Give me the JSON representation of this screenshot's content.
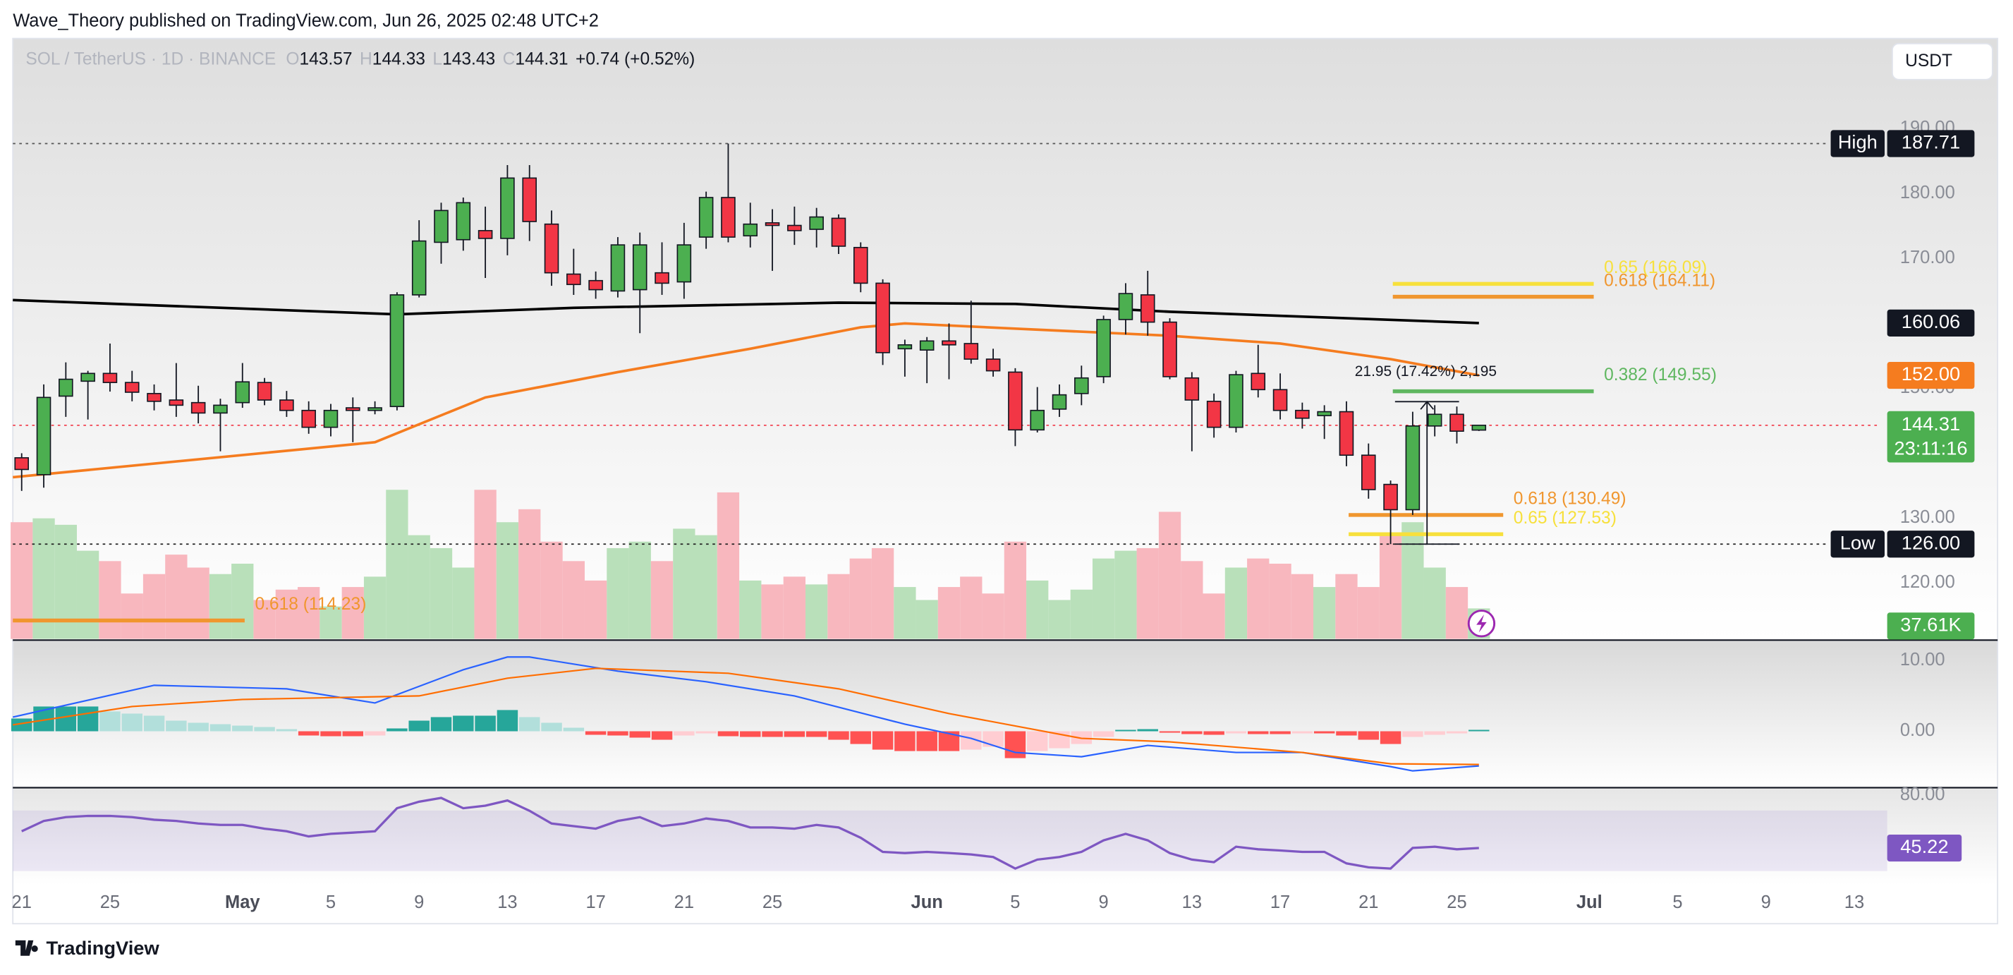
{
  "header": {
    "publisher": "Wave_Theory published on TradingView.com, Jun 26, 2025 02:48 UTC+2",
    "symbol": "SOL / TetherUS · 1D · BINANCE",
    "o": "O",
    "h": "H",
    "l": "L",
    "c": "C",
    "change": "+0.74 (+0.52%)",
    "currency": "USDT",
    "brand": "TradingView"
  },
  "chart_data": [
    {
      "type": "candlestick",
      "up_color": "#4caf50",
      "down_color": "#f23645",
      "xlim": [
        -0.4,
        84.2
      ],
      "xticks": [
        {
          "value": 0,
          "label": "21"
        },
        {
          "value": 4,
          "label": "25"
        },
        {
          "value": 10,
          "label": "May"
        },
        {
          "value": 14,
          "label": "5"
        },
        {
          "value": 18,
          "label": "9"
        },
        {
          "value": 22,
          "label": "13"
        },
        {
          "value": 26,
          "label": "17"
        },
        {
          "value": 30,
          "label": "21"
        },
        {
          "value": 34,
          "label": "25"
        },
        {
          "value": 41,
          "label": "Jun"
        },
        {
          "value": 45,
          "label": "5"
        },
        {
          "value": 49,
          "label": "9"
        },
        {
          "value": 53,
          "label": "13"
        },
        {
          "value": 57,
          "label": "17"
        },
        {
          "value": 61,
          "label": "21"
        },
        {
          "value": 65,
          "label": "25"
        },
        {
          "value": 71,
          "label": "Jul"
        },
        {
          "value": 75,
          "label": "5"
        },
        {
          "value": 79,
          "label": "9"
        },
        {
          "value": 83,
          "label": "13"
        }
      ],
      "ylim": [
        111.4,
        203.9
      ],
      "yticks": [
        {
          "value": 190,
          "label": "190.00"
        },
        {
          "value": 180,
          "label": "180.00"
        },
        {
          "value": 170,
          "label": "170.00"
        },
        {
          "value": 160,
          "label": "160.00"
        },
        {
          "value": 150,
          "label": "150.00"
        },
        {
          "value": 140,
          "label": "140.00"
        },
        {
          "value": 130,
          "label": "130.00"
        },
        {
          "value": 120,
          "label": "120.00"
        }
      ],
      "open": [
        139.3,
        136.7,
        148.8,
        151.1,
        152.3,
        150.9,
        149.2,
        148.2,
        147.8,
        146.2,
        147.8,
        150.9,
        148.2,
        146.6,
        144.0,
        147.0,
        146.6,
        147.2,
        164.4,
        172.5,
        172.9,
        174.3,
        173.1,
        182.4,
        175.3,
        167.6,
        166.6,
        165.0,
        165.2,
        167.8,
        166.4,
        173.3,
        179.4,
        173.5,
        175.5,
        175.1,
        174.5,
        176.2,
        171.7,
        166.2,
        156.1,
        155.9,
        157.3,
        156.9,
        154.5,
        152.5,
        143.6,
        146.8,
        149.2,
        151.8,
        160.6,
        164.4,
        160.2,
        151.6,
        148.0,
        144.0,
        152.3,
        149.8,
        146.6,
        145.8,
        146.4,
        139.7,
        135.2,
        131.3,
        144.2,
        146.0,
        143.57
      ],
      "high": [
        140.0,
        150.6,
        154.0,
        152.7,
        156.9,
        152.7,
        150.6,
        153.9,
        150.4,
        148.4,
        153.9,
        151.6,
        149.6,
        148.0,
        147.6,
        148.6,
        148.0,
        164.8,
        175.9,
        178.6,
        179.4,
        178.0,
        184.4,
        184.4,
        177.4,
        171.5,
        168.0,
        173.3,
        174.0,
        172.5,
        175.5,
        180.3,
        187.71,
        178.6,
        177.6,
        178.0,
        177.8,
        176.8,
        172.5,
        166.8,
        157.5,
        157.9,
        160.0,
        163.5,
        156.1,
        153.1,
        150.2,
        150.6,
        153.5,
        161.2,
        166.2,
        168.1,
        160.8,
        152.5,
        149.2,
        152.7,
        156.7,
        152.3,
        147.8,
        147.4,
        148.0,
        141.5,
        135.8,
        146.4,
        147.4,
        147.2,
        144.33
      ],
      "low": [
        134.2,
        134.7,
        145.6,
        145.2,
        149.5,
        148.0,
        146.6,
        145.6,
        144.6,
        140.3,
        147.0,
        147.4,
        145.6,
        143.0,
        142.6,
        141.7,
        146.0,
        146.6,
        164.0,
        169.2,
        171.2,
        167.0,
        170.5,
        172.7,
        165.8,
        164.4,
        163.8,
        164.0,
        158.5,
        164.4,
        163.8,
        171.5,
        172.5,
        171.7,
        168.1,
        172.1,
        171.7,
        170.7,
        164.8,
        153.6,
        151.8,
        150.8,
        151.4,
        153.8,
        151.8,
        141.1,
        143.2,
        145.6,
        147.4,
        150.8,
        158.3,
        158.1,
        151.4,
        140.3,
        142.4,
        143.2,
        148.6,
        145.2,
        143.8,
        142.2,
        138.0,
        133.0,
        126.0,
        130.5,
        142.6,
        141.5,
        143.43
      ],
      "close": [
        137.5,
        148.6,
        151.4,
        152.3,
        150.9,
        149.4,
        148.0,
        147.4,
        146.2,
        147.4,
        151.0,
        148.2,
        146.6,
        144.0,
        146.6,
        146.6,
        147.0,
        164.4,
        172.7,
        177.4,
        178.6,
        173.1,
        182.4,
        175.7,
        167.8,
        166.0,
        165.2,
        172.1,
        172.1,
        166.2,
        172.1,
        179.4,
        173.3,
        175.3,
        175.1,
        174.3,
        176.4,
        171.9,
        166.2,
        155.5,
        156.7,
        157.3,
        156.7,
        154.5,
        152.7,
        143.6,
        146.6,
        149.0,
        151.6,
        160.6,
        164.6,
        160.2,
        151.8,
        148.2,
        144.0,
        152.1,
        149.8,
        146.6,
        145.4,
        146.4,
        139.7,
        134.4,
        131.3,
        144.2,
        146.0,
        143.4,
        144.31
      ],
      "volume": {
        "up_color": "#b9e0ba",
        "down_color": "#f8b7be",
        "ylim": [
          0,
          190000
        ],
        "values": [
          144000,
          148800,
          140800,
          108800,
          96000,
          56000,
          80000,
          104000,
          88000,
          80000,
          92800,
          48000,
          60800,
          64000,
          40000,
          64000,
          76800,
          184000,
          128000,
          112000,
          88000,
          184000,
          144000,
          160000,
          120000,
          96000,
          72000,
          112000,
          120000,
          96000,
          136000,
          128000,
          180800,
          72000,
          67200,
          76800,
          67200,
          80000,
          99200,
          112000,
          64000,
          48000,
          64000,
          76800,
          56000,
          120000,
          72000,
          48000,
          60800,
          99200,
          108800,
          112000,
          156800,
          96000,
          56000,
          88000,
          99200,
          92800,
          80000,
          64000,
          80000,
          64000,
          128000,
          144000,
          88000,
          64000,
          37610
        ],
        "last_label": "37.61K",
        "label_color": "#4caf50"
      },
      "series": [
        {
          "color": "#000000",
          "x": [
            -0.4,
            17,
            25,
            37,
            45,
            52,
            60,
            66
          ],
          "values": [
            163.6,
            161.4,
            162.4,
            163.2,
            163.0,
            161.8,
            160.8,
            160.06
          ]
        },
        {
          "color": "#f57c1f",
          "x": [
            -0.4,
            16,
            21,
            27,
            33,
            38,
            40,
            45,
            52,
            57,
            62,
            66
          ],
          "values": [
            136.3,
            141.7,
            148.6,
            152.5,
            156.1,
            159.4,
            160.0,
            159.2,
            158.1,
            156.9,
            154.5,
            152.0
          ]
        }
      ],
      "fib_levels": [
        {
          "label": "0.65 (166.09)",
          "value": 166.09,
          "color": "#f7e03c",
          "x": [
            62.1,
            71.2
          ]
        },
        {
          "label": "0.618 (164.11)",
          "value": 164.11,
          "color": "#f0962e",
          "x": [
            62.1,
            71.2
          ]
        },
        {
          "label": "0.382 (149.55)",
          "value": 149.55,
          "color": "#5fb760",
          "x": [
            62.1,
            71.2
          ]
        },
        {
          "label": "0.618 (130.49)",
          "value": 130.49,
          "color": "#f0962e",
          "x": [
            60.1,
            67.1
          ]
        },
        {
          "label": "0.65 (127.53)",
          "value": 127.53,
          "color": "#f7e03c",
          "x": [
            60.1,
            67.1
          ]
        },
        {
          "label": "0.618 (114.23)",
          "value": 114.23,
          "color": "#f0962e",
          "x": [
            -0.4,
            10.1
          ]
        }
      ],
      "measure": {
        "label": "21.95 (17.42%) 2,195",
        "from": 126,
        "to": 147.95,
        "x": [
          62.2,
          65.1
        ]
      },
      "price_labels": [
        {
          "tag": "High",
          "value": 187.71,
          "label": "187.71",
          "bg": "#131722",
          "line": "#555555"
        },
        {
          "value": 160.06,
          "label": "160.06",
          "bg": "#131722"
        },
        {
          "value": 152,
          "label": "152.00",
          "bg": "#f57c1f"
        },
        {
          "value": 144.31,
          "label": "144.31",
          "sub": "23:11:16",
          "bg": "#4caf50",
          "line": "#f23645"
        },
        {
          "tag": "Low",
          "value": 126,
          "label": "126.00",
          "bg": "#131722",
          "line": "#222222"
        }
      ]
    },
    {
      "type": "macd",
      "ylim": [
        -7.8,
        12.7
      ],
      "yticks": [
        {
          "value": 10,
          "label": "10.00"
        },
        {
          "value": 0,
          "label": "0.00"
        }
      ],
      "hist_colors": [
        "#26a69a",
        "#b2dfdb",
        "#ff5252",
        "#ffcdd2"
      ],
      "histogram": [
        1.8,
        3.5,
        3.5,
        3.5,
        2.8,
        2.5,
        2.2,
        1.5,
        1.2,
        1.0,
        0.8,
        0.6,
        0.3,
        -0.6,
        -0.7,
        -0.7,
        -0.6,
        0.4,
        1.5,
        2.0,
        2.2,
        2.2,
        3.0,
        2.0,
        1.2,
        0.5,
        -0.5,
        -0.6,
        -0.9,
        -1.2,
        -0.6,
        -0.3,
        -0.7,
        -0.8,
        -0.8,
        -0.8,
        -0.8,
        -1.2,
        -1.8,
        -2.6,
        -2.8,
        -2.8,
        -2.8,
        -2.6,
        -2.2,
        -3.8,
        -2.8,
        -2.4,
        -1.8,
        -0.8,
        0.2,
        0.3,
        -0.2,
        -0.4,
        -0.5,
        -0.3,
        -0.4,
        -0.4,
        -0.3,
        -0.3,
        -0.6,
        -1.2,
        -1.8,
        -0.8,
        -0.5,
        -0.3,
        0.2
      ],
      "series": [
        {
          "color": "#2962ff",
          "x": [
            -0.4,
            6,
            12,
            16,
            20,
            22,
            23,
            27,
            31,
            35,
            40,
            43,
            45,
            48,
            51,
            55,
            58,
            62,
            63,
            66
          ],
          "values": [
            2,
            6.5,
            6,
            4,
            8.7,
            10.5,
            10.5,
            8.5,
            7,
            5,
            1,
            -1,
            -3,
            -3.6,
            -2,
            -3,
            -3,
            -5,
            -5.6,
            -4.9
          ]
        },
        {
          "color": "#ff6d00",
          "x": [
            -0.4,
            5,
            10,
            18,
            22,
            26,
            32,
            37,
            42,
            48,
            52,
            58,
            62,
            66
          ],
          "values": [
            0.9,
            3.5,
            4.5,
            5,
            7.5,
            8.9,
            8.2,
            6,
            2.5,
            -1,
            -1.5,
            -3,
            -4.6,
            -4.7
          ]
        }
      ]
    },
    {
      "type": "line",
      "ylim": [
        20.7,
        84.2
      ],
      "yticks": [
        {
          "value": 80,
          "label": "80.00"
        }
      ],
      "band": [
        30,
        70
      ],
      "color": "#7e57c2",
      "values": [
        56.3,
        63.1,
        65.6,
        66.4,
        66.4,
        65.6,
        63.9,
        63.1,
        61.4,
        60.5,
        60.5,
        58.0,
        56.3,
        52.9,
        54.6,
        55.4,
        56.3,
        71.5,
        75.8,
        78.3,
        71.5,
        73.2,
        76.6,
        69.8,
        61.4,
        59.7,
        58.0,
        63.1,
        65.6,
        59.7,
        61.4,
        64.7,
        63.1,
        58.8,
        58.8,
        58.0,
        60.5,
        58.8,
        52.0,
        42.7,
        41.9,
        42.7,
        41.9,
        41.0,
        39.3,
        31.7,
        37.6,
        39.3,
        42.7,
        50.3,
        54.6,
        50.3,
        41.9,
        37.6,
        35.9,
        46.1,
        44.4,
        43.6,
        42.7,
        42.7,
        35.1,
        32.5,
        31.7,
        45.3,
        46.1,
        44.4,
        45.22
      ]
    }
  ]
}
